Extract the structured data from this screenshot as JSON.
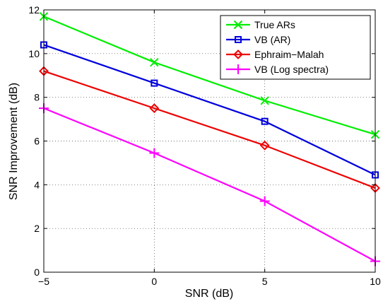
{
  "chart_data": {
    "type": "line",
    "xlabel": "SNR (dB)",
    "ylabel": "SNR Improvement  (dB)",
    "xlim": [
      -5,
      10
    ],
    "ylim": [
      0,
      12
    ],
    "xticks": [
      -5,
      0,
      5,
      10
    ],
    "xtick_labels": [
      "−5",
      "0",
      "5",
      "10"
    ],
    "yticks": [
      0,
      2,
      4,
      6,
      8,
      10,
      12
    ],
    "ytick_labels": [
      "0",
      "2",
      "4",
      "6",
      "8",
      "10",
      "12"
    ],
    "grid": true,
    "legend_position": "top-right",
    "x": [
      -5,
      0,
      5,
      10
    ],
    "series": [
      {
        "name": "True ARs",
        "values": [
          11.7,
          9.6,
          7.85,
          6.3
        ],
        "color": "#00ee00",
        "marker": "x"
      },
      {
        "name": "VB (AR)",
        "values": [
          10.4,
          8.65,
          6.9,
          4.45
        ],
        "color": "#0000dd",
        "marker": "square"
      },
      {
        "name": "Ephraim−Malah",
        "values": [
          9.2,
          7.5,
          5.8,
          3.85
        ],
        "color": "#ee0000",
        "marker": "diamond"
      },
      {
        "name": "VB (Log spectra)",
        "values": [
          7.5,
          5.45,
          3.25,
          0.5
        ],
        "color": "#ff00ff",
        "marker": "plus"
      }
    ]
  }
}
